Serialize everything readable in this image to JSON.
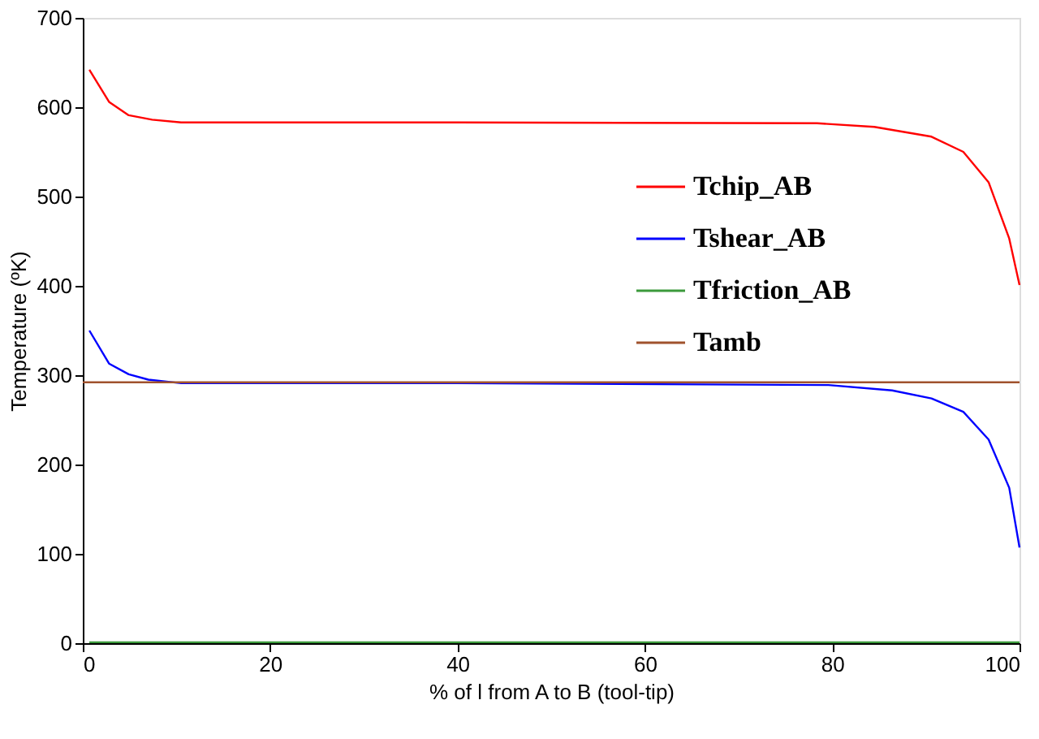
{
  "chart_data": {
    "type": "line",
    "xlabel": "% of l from A to B (tool-tip)",
    "ylabel": "Temperature (ºK)",
    "xlim": [
      0,
      100
    ],
    "ylim": [
      0,
      700
    ],
    "xticks": [
      0,
      20,
      40,
      60,
      80,
      100
    ],
    "yticks": [
      0,
      100,
      200,
      300,
      400,
      500,
      600,
      700
    ],
    "grid": false,
    "legend": "right",
    "marker": "none",
    "line_style": "solid",
    "series": [
      {
        "name": "Tchip_AB",
        "color": "#ff0000",
        "x": [
          0.7,
          2.8,
          4.9,
          7.4,
          10.5,
          40,
          78.4,
          84.5,
          90.6,
          94,
          96.7,
          98.9,
          100
        ],
        "values": [
          642,
          606,
          591,
          586,
          583,
          583,
          582,
          578,
          567,
          550,
          516,
          453,
          401
        ]
      },
      {
        "name": "Tshear_AB",
        "color": "#0000ff",
        "x": [
          0.7,
          2.8,
          4.9,
          7,
          10.5,
          40,
          79.6,
          86.4,
          90.6,
          94,
          96.7,
          98.9,
          100
        ],
        "values": [
          350,
          313,
          301,
          295,
          291,
          291,
          289,
          283,
          274,
          259,
          228,
          174,
          107
        ]
      },
      {
        "name": "Tfriction_AB",
        "color": "#3c9a3c",
        "x": [
          0.7,
          100
        ],
        "values": [
          1,
          1
        ]
      },
      {
        "name": "Tamb",
        "color": "#a0522d",
        "x": [
          0,
          100
        ],
        "values": [
          292,
          292
        ]
      }
    ]
  }
}
